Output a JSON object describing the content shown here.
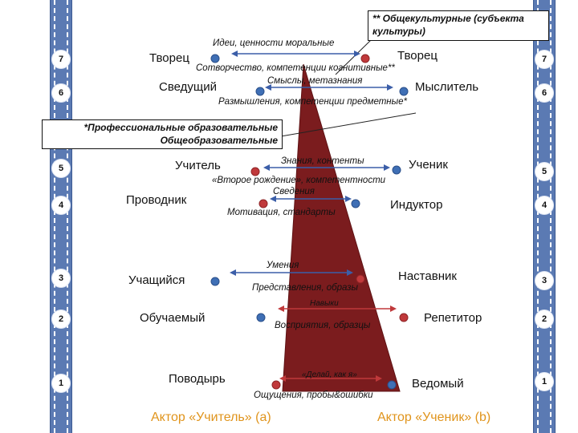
{
  "levels_left": [
    "7",
    "6",
    "5",
    "4",
    "3",
    "2",
    "1"
  ],
  "levels_right": [
    "7",
    "6",
    "5",
    "4",
    "3",
    "2",
    "1"
  ],
  "boxes": {
    "top": "** Общекультурные (субъекта культуры)",
    "middle": "*Профессиональные образовательные Общеобразовательные"
  },
  "left_roles": [
    "Творец",
    "Сведущий",
    "Учитель",
    "Проводник",
    "Учащийся",
    "Обучаемый",
    "Поводырь"
  ],
  "right_roles": [
    "Творец",
    "Мыслитель",
    "Ученик",
    "Индуктор",
    "Наставник",
    "Репетитор",
    "Ведомый"
  ],
  "notes": {
    "ideas": "Идеи, ценности моральные",
    "co_creation": "Сотворчество, компетенции когнитивные**",
    "meanings": "Смыслы, метазнания",
    "reflection": "Размышления, компетенции предметные*",
    "knowledge": "Знания, контенты",
    "second_birth": "«Второе рождение», компетентности",
    "information": "Сведения",
    "motivation": "Мотивация, стандарты",
    "skills": "Умения",
    "representations": "Представления, образы",
    "habits": "Навыки",
    "perceptions": "Восприятия, образцы",
    "do_as_i_do": "«Делай, как я»",
    "sensations": "Ощущения, пробы&ошибки"
  },
  "actors": {
    "teacher": "Актор «Учитель» (а)",
    "student": "Актор «Ученик» (b)"
  },
  "colors": {
    "rail": "#5b7ab3",
    "triangle": "#7b1c1e",
    "blue_dot": "#3f6fb5",
    "red_dot": "#c0393b",
    "arrow_blue": "#3b5ea8",
    "arrow_red": "#c0393b",
    "actor_text": "#e0941c"
  },
  "icons": [
    "blue-dot-icon",
    "red-dot-icon",
    "double-arrow-icon"
  ]
}
